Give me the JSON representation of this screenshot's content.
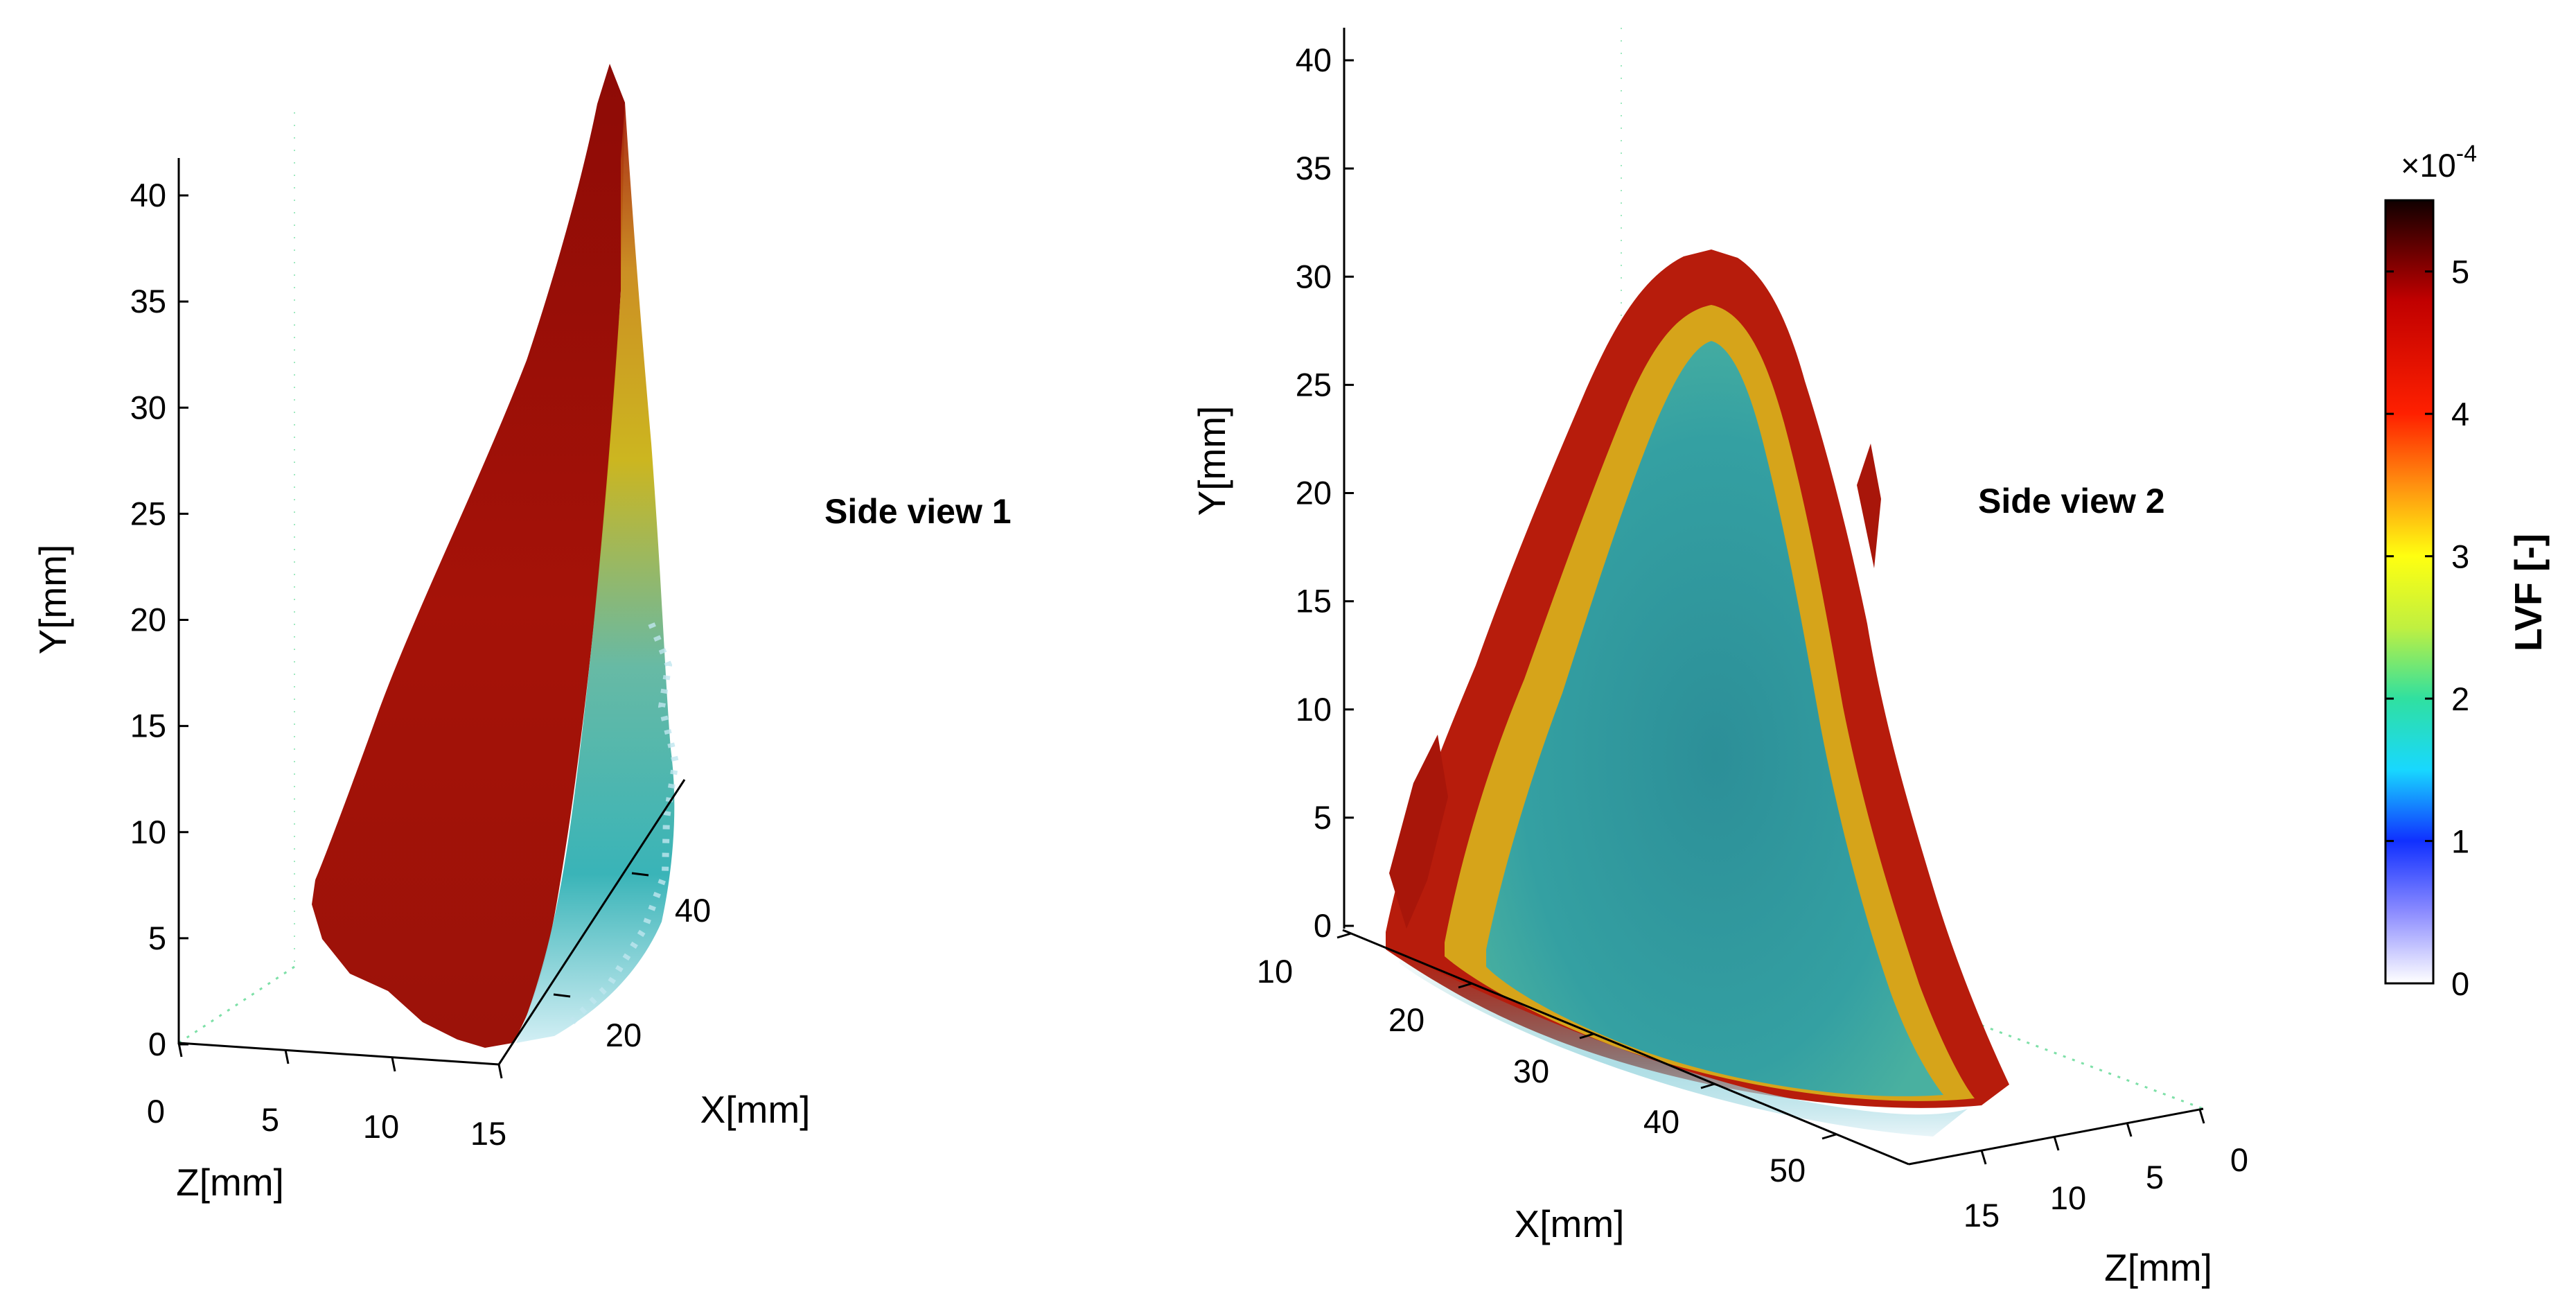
{
  "chart_data": [
    {
      "type": "3d-volume",
      "view_label": "Side view 1",
      "x_axis": {
        "label": "X[mm]",
        "ticks": [
          "20",
          "40"
        ]
      },
      "y_axis": {
        "label": "Y[mm]",
        "range": [
          0,
          40
        ],
        "ticks": [
          "0",
          "5",
          "10",
          "15",
          "20",
          "25",
          "30",
          "35",
          "40"
        ]
      },
      "z_axis": {
        "label": "Z[mm]",
        "range": [
          0,
          15
        ],
        "ticks": [
          "0",
          "5",
          "10",
          "15"
        ]
      },
      "peak_height_mm": 42,
      "surface_colors": {
        "front_face": "#a51208",
        "side_face_top": "#c9b214",
        "side_face_bottom": "#2fb0b4"
      }
    },
    {
      "type": "3d-volume",
      "view_label": "Side view 2",
      "x_axis": {
        "label": "X[mm]",
        "ticks": [
          "10",
          "20",
          "30",
          "40",
          "50"
        ]
      },
      "y_axis": {
        "label": "Y[mm]",
        "range": [
          0,
          40
        ],
        "ticks": [
          "0",
          "5",
          "10",
          "15",
          "20",
          "25",
          "30",
          "35",
          "40"
        ]
      },
      "z_axis": {
        "label": "Z[mm]",
        "ticks": [
          "15",
          "10",
          "5",
          "0"
        ]
      },
      "peak_height_mm": 31,
      "surface_colors": {
        "rim": "#b71c0c",
        "band": "#d6b51a",
        "core": "#2f9a9c"
      }
    }
  ],
  "colorbar": {
    "label": "LVF [-]",
    "multiplier_base": "×10",
    "multiplier_exponent": "-4",
    "range": [
      0,
      5.5
    ],
    "ticks": [
      "0",
      "1",
      "2",
      "3",
      "4",
      "5"
    ],
    "tick_values": [
      0,
      1,
      2,
      3,
      4,
      5
    ],
    "stops": [
      {
        "v": 0.0,
        "c": "#ffffff"
      },
      {
        "v": 0.5,
        "c": "#8c8cff"
      },
      {
        "v": 1.0,
        "c": "#1030ff"
      },
      {
        "v": 1.5,
        "c": "#18d8ff"
      },
      {
        "v": 2.0,
        "c": "#30e0a0"
      },
      {
        "v": 2.5,
        "c": "#c0f040"
      },
      {
        "v": 3.0,
        "c": "#ffff10"
      },
      {
        "v": 3.5,
        "c": "#ff9010"
      },
      {
        "v": 4.0,
        "c": "#ff2000"
      },
      {
        "v": 4.8,
        "c": "#c00000"
      },
      {
        "v": 5.5,
        "c": "#100000"
      }
    ]
  }
}
